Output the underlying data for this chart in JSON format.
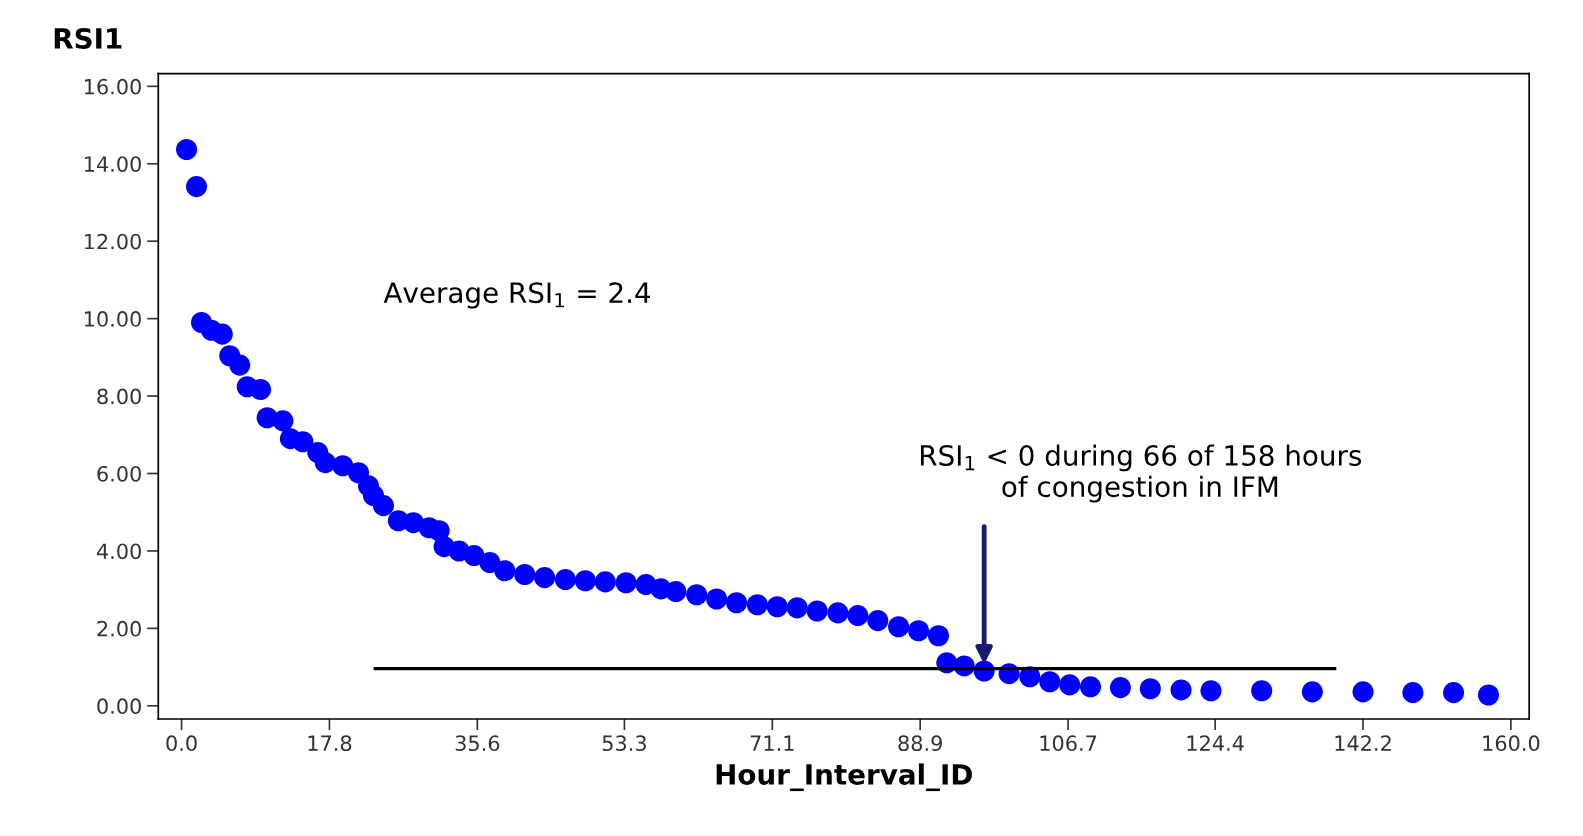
{
  "chart_data": {
    "type": "scatter",
    "ylabel": "RSI1",
    "xlabel": "Hour_Interval_ID",
    "annotations": [
      "Average RSI$_{1}$ = 2.4",
      {
        "text": "RSI$_{1}$ < 0 during 66 of 158 hours\nof congestion in IFM",
        "x": 96.6,
        "y": 1.0
      }
    ],
    "series": [
      {
        "color": "#0000ff",
        "marker": "circle",
        "x": [
          0.6,
          1.8,
          2.4,
          3.6,
          4.9,
          5.8,
          7.0,
          7.9,
          9.5,
          10.3,
          12.2,
          13.1,
          14.6,
          16.4,
          17.3,
          19.4,
          21.3,
          22.5,
          23.1,
          24.3,
          26.1,
          27.9,
          29.8,
          31.0,
          31.6,
          33.4,
          35.2,
          37.1,
          38.9,
          41.3,
          43.7,
          46.2,
          48.6,
          51.0,
          53.5,
          55.9,
          57.7,
          59.5,
          62.0,
          64.4,
          66.8,
          69.3,
          71.7,
          74.1,
          76.5,
          79.0,
          81.4,
          83.8,
          86.3,
          88.7,
          91.1,
          92.1,
          94.2,
          96.6,
          99.6,
          102.1,
          104.5,
          106.9,
          109.4,
          113.0,
          116.6,
          120.3,
          123.9,
          130.0,
          136.1,
          142.2,
          148.2,
          153.1,
          157.3
        ],
        "values": [
          14.37,
          13.41,
          9.9,
          9.7,
          9.6,
          9.04,
          8.8,
          8.24,
          8.17,
          7.44,
          7.36,
          6.9,
          6.82,
          6.54,
          6.28,
          6.2,
          6.02,
          5.68,
          5.43,
          5.17,
          4.78,
          4.73,
          4.6,
          4.52,
          4.11,
          4.0,
          3.88,
          3.7,
          3.49,
          3.39,
          3.31,
          3.26,
          3.23,
          3.2,
          3.18,
          3.13,
          3.02,
          2.95,
          2.87,
          2.76,
          2.66,
          2.61,
          2.56,
          2.53,
          2.45,
          2.4,
          2.33,
          2.2,
          2.04,
          1.94,
          1.81,
          1.11,
          1.03,
          0.9,
          0.83,
          0.75,
          0.62,
          0.54,
          0.49,
          0.47,
          0.44,
          0.41,
          0.39,
          0.39,
          0.36,
          0.36,
          0.34,
          0.34,
          0.28
        ]
      },
      {
        "type": "line",
        "color": "#000000",
        "marker": "none",
        "line_style": "solid",
        "x": [
          23.3,
          138.8
        ],
        "values": [
          0.96,
          0.96
        ]
      }
    ],
    "xlim": [
      -2.8,
      162.2
    ],
    "ylim": [
      -0.34,
      16.33
    ],
    "xticks": [
      {
        "value": 0,
        "label": "0.0"
      },
      {
        "value": 17.8,
        "label": "17.8"
      },
      {
        "value": 35.6,
        "label": "35.6"
      },
      {
        "value": 53.3,
        "label": "53.3"
      },
      {
        "value": 71.1,
        "label": "71.1"
      },
      {
        "value": 88.9,
        "label": "88.9"
      },
      {
        "value": 106.7,
        "label": "106.7"
      },
      {
        "value": 124.4,
        "label": "124.4"
      },
      {
        "value": 142.2,
        "label": "142.2"
      },
      {
        "value": 160,
        "label": "160.0"
      }
    ],
    "yticks": [
      {
        "value": 0,
        "label": "0.00"
      },
      {
        "value": 2,
        "label": "2.00"
      },
      {
        "value": 4,
        "label": "4.00"
      },
      {
        "value": 6,
        "label": "6.00"
      },
      {
        "value": 8,
        "label": "8.00"
      },
      {
        "value": 10,
        "label": "10.00"
      },
      {
        "value": 12,
        "label": "12.00"
      },
      {
        "value": 14,
        "label": "14.00"
      },
      {
        "value": 16,
        "label": "16.00"
      }
    ],
    "grid": false,
    "legend": false
  }
}
